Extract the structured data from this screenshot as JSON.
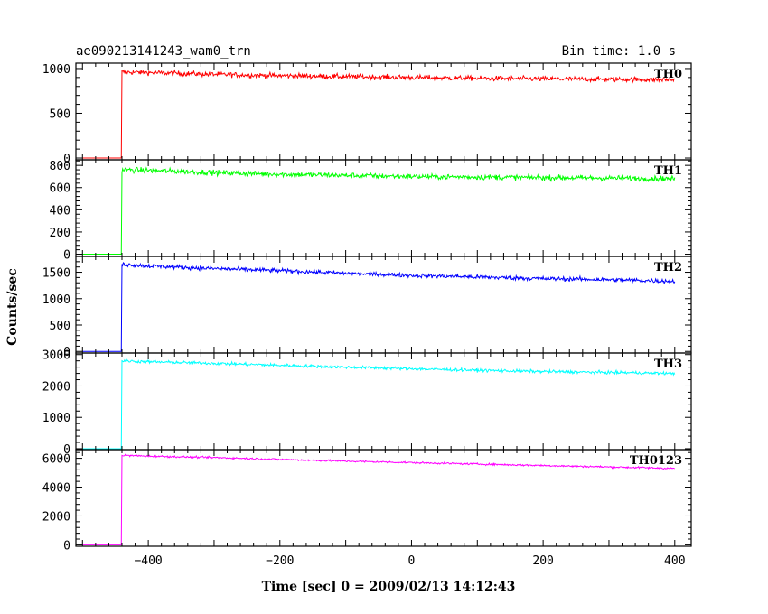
{
  "header": {
    "title": "ae090213141243_wam0_trn",
    "bin_time": "Bin time: 1.0 s"
  },
  "chart_data": {
    "type": "line",
    "xlabel": "Time [sec] 0 = 2009/02/13 14:12:43",
    "ylabel": "Counts/sec",
    "xlim": [
      -510,
      425
    ],
    "x_ticks": [
      -400,
      -200,
      0,
      200,
      400
    ],
    "grid": false,
    "legend": "none",
    "panels": [
      {
        "name": "TH0",
        "color": "#ff0000",
        "ylim": [
          -20,
          1060
        ],
        "y_ticks": [
          0,
          500,
          1000
        ],
        "baseline": 0,
        "onset": -440,
        "peak": 960,
        "end": 875,
        "noise": 35,
        "points": [
          [
            -500,
            0
          ],
          [
            -441,
            0
          ],
          [
            -440,
            960
          ],
          [
            -400,
            955
          ],
          [
            -300,
            935
          ],
          [
            -200,
            920
          ],
          [
            -100,
            910
          ],
          [
            0,
            900
          ],
          [
            100,
            890
          ],
          [
            200,
            885
          ],
          [
            300,
            880
          ],
          [
            400,
            875
          ]
        ]
      },
      {
        "name": "TH1",
        "color": "#00ff00",
        "ylim": [
          -20,
          850
        ],
        "y_ticks": [
          0,
          200,
          400,
          600,
          800
        ],
        "baseline": 0,
        "onset": -440,
        "peak": 760,
        "end": 680,
        "noise": 30,
        "points": [
          [
            -500,
            0
          ],
          [
            -441,
            0
          ],
          [
            -440,
            760
          ],
          [
            -400,
            755
          ],
          [
            -300,
            735
          ],
          [
            -200,
            720
          ],
          [
            -100,
            710
          ],
          [
            0,
            700
          ],
          [
            100,
            695
          ],
          [
            200,
            690
          ],
          [
            300,
            685
          ],
          [
            400,
            680
          ]
        ]
      },
      {
        "name": "TH2",
        "color": "#0000ff",
        "ylim": [
          -30,
          1800
        ],
        "y_ticks": [
          0,
          500,
          1000,
          1500
        ],
        "baseline": 0,
        "onset": -440,
        "peak": 1650,
        "end": 1330,
        "noise": 50,
        "points": [
          [
            -500,
            0
          ],
          [
            -441,
            0
          ],
          [
            -440,
            1650
          ],
          [
            -400,
            1620
          ],
          [
            -300,
            1570
          ],
          [
            -200,
            1530
          ],
          [
            -100,
            1480
          ],
          [
            0,
            1440
          ],
          [
            100,
            1410
          ],
          [
            200,
            1380
          ],
          [
            300,
            1360
          ],
          [
            400,
            1330
          ]
        ]
      },
      {
        "name": "TH3",
        "color": "#00ffff",
        "ylim": [
          -30,
          3050
        ],
        "y_ticks": [
          0,
          1000,
          2000,
          3000
        ],
        "baseline": 0,
        "onset": -440,
        "peak": 2800,
        "end": 2400,
        "noise": 60,
        "points": [
          [
            -500,
            0
          ],
          [
            -441,
            0
          ],
          [
            -440,
            2800
          ],
          [
            -400,
            2770
          ],
          [
            -300,
            2720
          ],
          [
            -200,
            2660
          ],
          [
            -100,
            2600
          ],
          [
            0,
            2550
          ],
          [
            100,
            2500
          ],
          [
            200,
            2460
          ],
          [
            300,
            2430
          ],
          [
            400,
            2400
          ]
        ]
      },
      {
        "name": "TH0123",
        "color": "#ff00ff",
        "ylim": [
          -100,
          6600
        ],
        "y_ticks": [
          0,
          2000,
          4000,
          6000
        ],
        "baseline": 0,
        "onset": -440,
        "peak": 6200,
        "end": 5300,
        "noise": 80,
        "points": [
          [
            -500,
            0
          ],
          [
            -441,
            0
          ],
          [
            -440,
            6200
          ],
          [
            -400,
            6150
          ],
          [
            -300,
            6050
          ],
          [
            -200,
            5920
          ],
          [
            -100,
            5800
          ],
          [
            0,
            5700
          ],
          [
            100,
            5600
          ],
          [
            200,
            5500
          ],
          [
            300,
            5400
          ],
          [
            400,
            5300
          ]
        ]
      }
    ]
  }
}
